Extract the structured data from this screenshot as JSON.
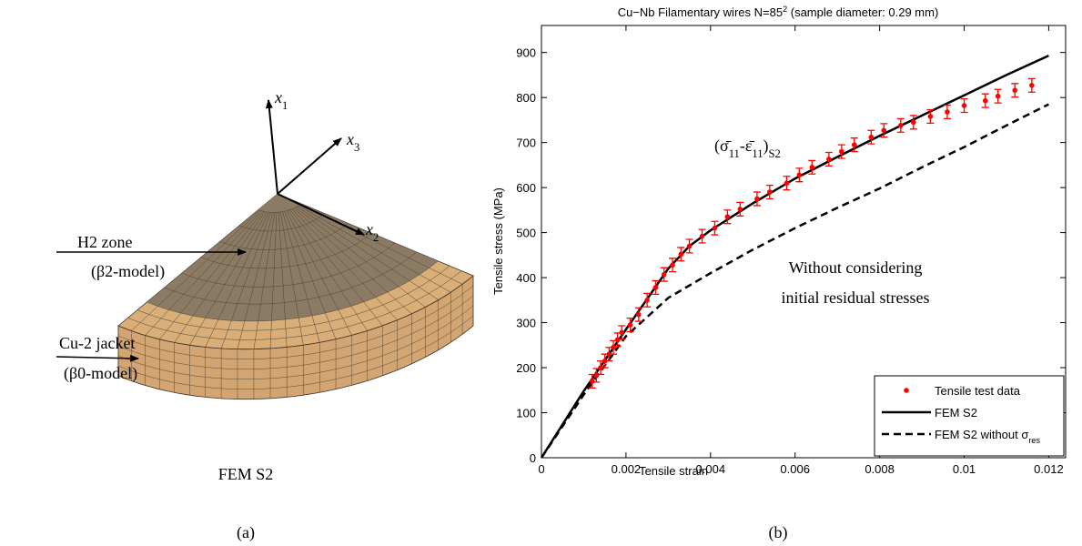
{
  "panel_a": {
    "axes": [
      [
        "x",
        "1"
      ],
      [
        "x",
        "3"
      ],
      [
        "x",
        "2"
      ]
    ],
    "zone_labels": [
      "H2 zone",
      "(β2-model)",
      "Cu-2 jacket",
      "(β0-model)"
    ],
    "caption": "FEM S2",
    "panel_label": "(a)"
  },
  "panel_label_b": "(b)",
  "chart_data": {
    "type": "line",
    "title": [
      "Cu−Nb Filamentary wires N=85",
      "2",
      " (sample diameter: 0.29 mm)"
    ],
    "xlabel": "Tensile strain",
    "ylabel": "Tensile stress (MPa)",
    "formula": [
      "(σ̄",
      "11",
      "-ε̄",
      "11",
      ")",
      "S2"
    ],
    "annotations": [
      "Without considering",
      "initial residual stresses"
    ],
    "xlim": [
      0,
      0.0124
    ],
    "ylim": [
      0,
      960
    ],
    "xticks": [
      0,
      0.002,
      0.004,
      0.006,
      0.008,
      0.01,
      0.012
    ],
    "yticks": [
      0,
      100,
      200,
      300,
      400,
      500,
      600,
      700,
      800,
      900
    ],
    "legend": "lower right",
    "series": [
      {
        "name": "Tensile test data",
        "color": "#ff0000",
        "style": "markers",
        "x": [
          0.0012,
          0.0013,
          0.0014,
          0.0015,
          0.0016,
          0.0017,
          0.0018,
          0.0019,
          0.0021,
          0.0023,
          0.0025,
          0.0027,
          0.0029,
          0.0031,
          0.0033,
          0.0035,
          0.0038,
          0.0041,
          0.0044,
          0.0047,
          0.0051,
          0.0054,
          0.0058,
          0.0061,
          0.0064,
          0.0068,
          0.0071,
          0.0074,
          0.0078,
          0.0081,
          0.0085,
          0.0088,
          0.0092,
          0.0096,
          0.01,
          0.0105,
          0.0108,
          0.0112,
          0.0116
        ],
        "y": [
          170,
          183,
          200,
          215,
          230,
          245,
          262,
          278,
          295,
          318,
          350,
          378,
          407,
          428,
          452,
          470,
          492,
          510,
          535,
          552,
          575,
          590,
          610,
          628,
          645,
          663,
          680,
          695,
          712,
          727,
          738,
          745,
          758,
          768,
          782,
          793,
          803,
          816,
          827
        ],
        "errors": [
          15,
          15,
          15,
          15,
          15,
          15,
          15,
          15,
          15,
          15,
          15,
          15,
          15,
          15,
          15,
          15,
          15,
          15,
          15,
          15,
          15,
          15,
          15,
          15,
          15,
          15,
          15,
          15,
          15,
          15,
          15,
          15,
          15,
          15,
          15,
          15,
          15,
          15,
          15
        ]
      },
      {
        "name": "FEM S2",
        "color": "#000000",
        "style": "solid",
        "x": [
          0,
          0.001,
          0.002,
          0.003,
          0.0035,
          0.004,
          0.005,
          0.006,
          0.007,
          0.008,
          0.009,
          0.01,
          0.011,
          0.012
        ],
        "y": [
          0,
          148,
          285,
          420,
          470,
          505,
          565,
          620,
          668,
          715,
          760,
          805,
          850,
          893
        ]
      },
      {
        "name": [
          "FEM S2 without σ",
          "res"
        ],
        "color": "#000000",
        "style": "dashed",
        "x": [
          0,
          0.001,
          0.002,
          0.003,
          0.004,
          0.005,
          0.006,
          0.007,
          0.008,
          0.009,
          0.01,
          0.011,
          0.012
        ],
        "y": [
          0,
          140,
          270,
          355,
          410,
          462,
          510,
          555,
          598,
          645,
          690,
          738,
          785
        ]
      }
    ]
  }
}
